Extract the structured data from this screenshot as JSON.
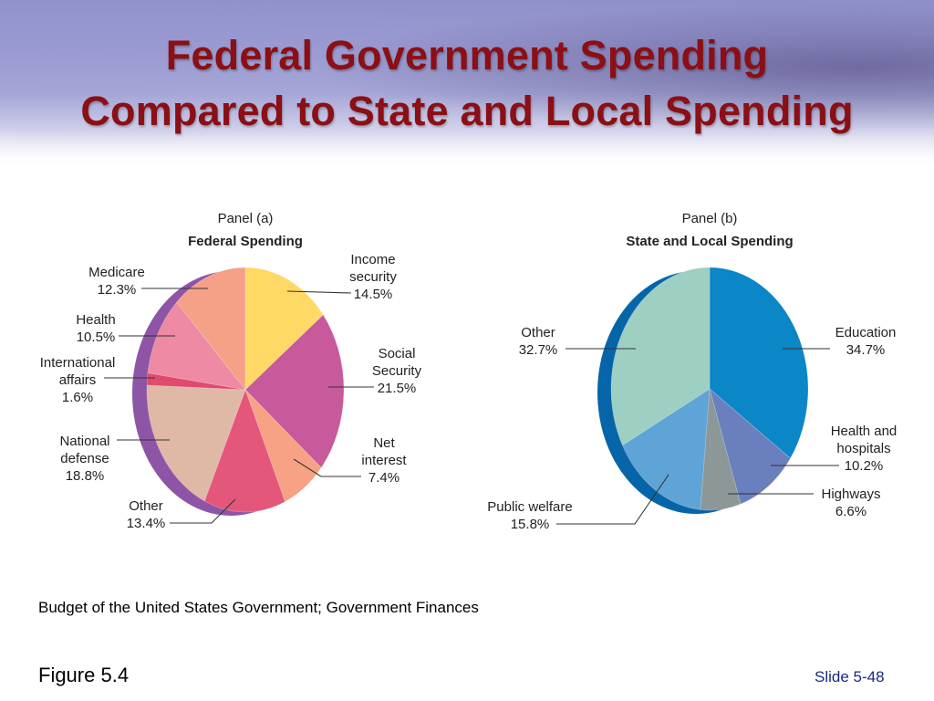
{
  "slide": {
    "title_line1": "Federal Government Spending",
    "title_line2": "Compared to State and Local Spending",
    "source": "Budget of the United States Government; Government Finances",
    "figure_label": "Figure 5.4",
    "slide_number": "Slide 5-48"
  },
  "chart_data": [
    {
      "type": "pie",
      "panel": "Panel (a)",
      "title": "Federal Spending",
      "slices": [
        {
          "label": [
            "Income",
            "security"
          ],
          "value_label": "14.5%",
          "value": 14.5,
          "color": "#ffd966"
        },
        {
          "label": [
            "Social",
            "Security"
          ],
          "value_label": "21.5%",
          "value": 21.5,
          "color": "#c8599a"
        },
        {
          "label": [
            "Net",
            "interest"
          ],
          "value_label": "7.4%",
          "value": 7.4,
          "color": "#f7a284"
        },
        {
          "label": [
            "Other"
          ],
          "value_label": "13.4%",
          "value": 13.4,
          "color": "#e4577a"
        },
        {
          "label": [
            "National",
            "defense"
          ],
          "value_label": "18.8%",
          "value": 18.8,
          "color": "#dfb9a6"
        },
        {
          "label": [
            "International",
            "affairs"
          ],
          "value_label": "1.6%",
          "value": 1.6,
          "color": "#df4b6c"
        },
        {
          "label": [
            "Health"
          ],
          "value_label": "10.5%",
          "value": 10.5,
          "color": "#ee8aa3"
        },
        {
          "label": [
            "Medicare"
          ],
          "value_label": "12.3%",
          "value": 12.3,
          "color": "#f5a188"
        }
      ],
      "rim_color": "#8e55a6"
    },
    {
      "type": "pie",
      "panel": "Panel (b)",
      "title": "State and Local Spending",
      "slices": [
        {
          "label": [
            "Education"
          ],
          "value_label": "34.7%",
          "value": 34.7,
          "color": "#0b86c6"
        },
        {
          "label": [
            "Health and",
            "hospitals"
          ],
          "value_label": "10.2%",
          "value": 10.2,
          "color": "#6a7fbd"
        },
        {
          "label": [
            "Highways"
          ],
          "value_label": "6.6%",
          "value": 6.6,
          "color": "#8c9797"
        },
        {
          "label": [
            "Public welfare"
          ],
          "value_label": "15.8%",
          "value": 15.8,
          "color": "#5ea4d6"
        },
        {
          "label": [
            "Other"
          ],
          "value_label": "32.7%",
          "value": 32.7,
          "color": "#9dcfc3"
        }
      ],
      "rim_color": "#0565a8"
    }
  ]
}
